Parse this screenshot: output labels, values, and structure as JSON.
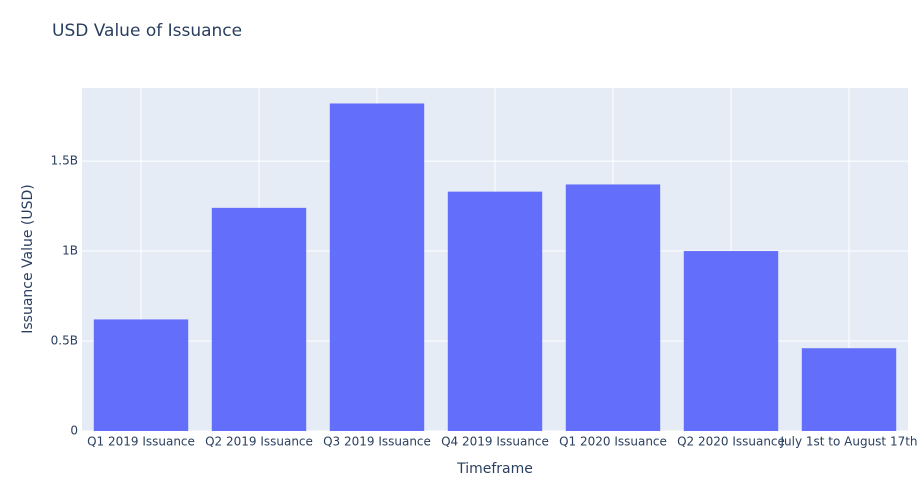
{
  "chart_data": {
    "type": "bar",
    "title": "USD Value of Issuance",
    "x_label": "Timeframe",
    "y_label": "Issuance Value (USD)",
    "categories": [
      "Q1 2019 Issuance",
      "Q2 2019 Issuance",
      "Q3 2019 Issuance",
      "Q4 2019 Issuance",
      "Q1 2020 Issuance",
      "Q2 2020 Issuance",
      "July 1st to August 17th"
    ],
    "values": [
      620000000,
      1240000000,
      1820000000,
      1330000000,
      1370000000,
      1000000000,
      460000000
    ],
    "color": "#636efa",
    "ylim": [
      0,
      1906000000
    ],
    "yticks": [
      0,
      {
        "value": 500000000,
        "label": "0.5B"
      },
      {
        "value": 1000000000,
        "label": "1B"
      },
      {
        "value": 1500000000,
        "label": "1.5B"
      }
    ],
    "grid": true
  }
}
